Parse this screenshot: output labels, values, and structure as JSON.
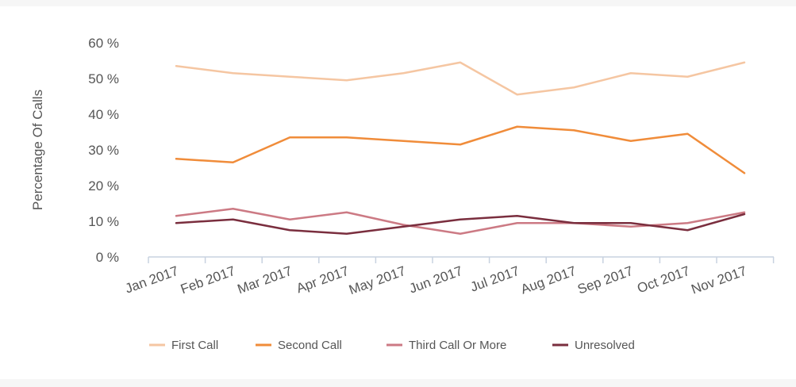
{
  "chart_data": {
    "type": "line",
    "title": "",
    "xlabel": "",
    "ylabel": "Percentage Of Calls",
    "ylim": [
      0,
      60
    ],
    "y_ticks": [
      "0 %",
      "10 %",
      "20 %",
      "30 %",
      "40 %",
      "50 %",
      "60 %"
    ],
    "categories": [
      "Jan 2017",
      "Feb 2017",
      "Mar 2017",
      "Apr 2017",
      "May 2017",
      "Jun 2017",
      "Jul 2017",
      "Aug 2017",
      "Sep 2017",
      "Oct 2017",
      "Nov 2017"
    ],
    "grid": false,
    "legend_position": "bottom",
    "series": [
      {
        "name": "First Call",
        "color": "#f5c6a2",
        "values": [
          53.5,
          51.5,
          50.5,
          49.5,
          51.5,
          54.5,
          45.5,
          47.5,
          51.5,
          50.5,
          54.5
        ]
      },
      {
        "name": "Second Call",
        "color": "#f08c3a",
        "values": [
          27.5,
          26.5,
          33.5,
          33.5,
          32.5,
          31.5,
          36.5,
          35.5,
          32.5,
          34.5,
          23.5
        ]
      },
      {
        "name": "Third Call Or More",
        "color": "#cc7a84",
        "values": [
          11.5,
          13.5,
          10.5,
          12.5,
          9.0,
          6.5,
          9.5,
          9.5,
          8.5,
          9.5,
          12.5
        ]
      },
      {
        "name": "Unresolved",
        "color": "#7a2e3e",
        "values": [
          9.5,
          10.5,
          7.5,
          6.5,
          8.5,
          10.5,
          11.5,
          9.5,
          9.5,
          7.5,
          12.0
        ]
      }
    ]
  }
}
